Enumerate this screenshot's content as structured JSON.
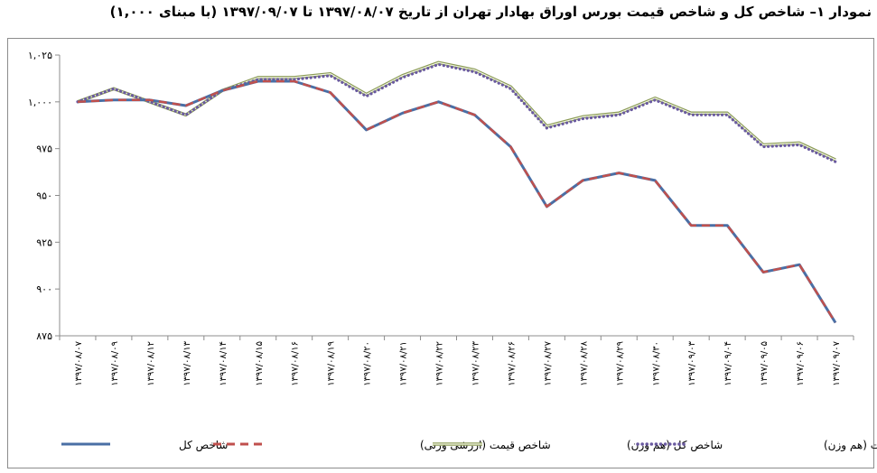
{
  "title": "نمودار ۱– شاخص کل و شاخص قیمت بورس اوراق بهادار تهران از تاریخ ۱۳۹۷/۰۸/۰۷ تا ۱۳۹۷/۰۹/۰۷ (با مبنای ۱,۰۰۰)",
  "chart_data": {
    "type": "line",
    "title": "نمودار ۱– شاخص کل و شاخص قیمت بورس اوراق بهادار تهران از تاریخ ۱۳۹۷/۰۸/۰۷ تا ۱۳۹۷/۰۹/۰۷ (با مبنای ۱,۰۰۰)",
    "ylim": [
      875,
      1025
    ],
    "yticks": [
      875,
      900,
      925,
      950,
      975,
      1000,
      1025
    ],
    "ytick_labels": [
      "۸۷۵",
      "۹۰۰",
      "۹۲۵",
      "۹۵۰",
      "۹۷۵",
      "۱,۰۰۰",
      "۱,۰۲۵"
    ],
    "categories": [
      "۱۳۹۷/۰۸/۰۷",
      "۱۳۹۷/۰۸/۰۹",
      "۱۳۹۷/۰۸/۱۲",
      "۱۳۹۷/۰۸/۱۳",
      "۱۳۹۷/۰۸/۱۴",
      "۱۳۹۷/۰۸/۱۵",
      "۱۳۹۷/۰۸/۱۶",
      "۱۳۹۷/۰۸/۱۹",
      "۱۳۹۷/۰۸/۲۰",
      "۱۳۹۷/۰۸/۲۱",
      "۱۳۹۷/۰۸/۲۲",
      "۱۳۹۷/۰۸/۲۳",
      "۱۳۹۷/۰۸/۲۶",
      "۱۳۹۷/۰۸/۲۷",
      "۱۳۹۷/۰۸/۲۸",
      "۱۳۹۷/۰۸/۲۹",
      "۱۳۹۷/۰۸/۳۰",
      "۱۳۹۷/۰۹/۰۳",
      "۱۳۹۷/۰۹/۰۴",
      "۱۳۹۷/۰۹/۰۵",
      "۱۳۹۷/۰۹/۰۶",
      "۱۳۹۷/۰۹/۰۷"
    ],
    "grid": false,
    "legend_position": "bottom",
    "series": [
      {
        "name": "شاخص کل",
        "color": "#4a6fa5",
        "style": "solid",
        "values": [
          1000,
          1001,
          1001,
          998,
          1006,
          1011,
          1011,
          1005,
          985,
          994,
          1000,
          993,
          976,
          944,
          958,
          962,
          958,
          934,
          934,
          909,
          913,
          882
        ]
      },
      {
        "name": "شاخص قیمت (ارزشی وزنی)",
        "color": "#c0504d",
        "style": "dashed",
        "values": [
          1000,
          1001,
          1001,
          998,
          1006,
          1011,
          1011,
          1005,
          985,
          994,
          1000,
          993,
          976,
          944,
          958,
          962,
          958,
          934,
          934,
          909,
          913,
          882
        ]
      },
      {
        "name": "شاخص کل (هم وزن)",
        "color": "#b5c77a",
        "style": "double",
        "values": [
          1000,
          1007,
          1000,
          993,
          1006,
          1013,
          1013,
          1015,
          1004,
          1014,
          1021,
          1017,
          1008,
          987,
          992,
          994,
          1002,
          994,
          994,
          977,
          978,
          969
        ]
      },
      {
        "name": "شاخص قیمت (هم وزن)",
        "color": "#6a5aa0",
        "style": "dotted",
        "values": [
          1000,
          1007,
          1000,
          993,
          1006,
          1012,
          1012,
          1014,
          1003,
          1013,
          1020,
          1016,
          1007,
          986,
          991,
          993,
          1001,
          993,
          993,
          976,
          977,
          968
        ]
      }
    ]
  }
}
